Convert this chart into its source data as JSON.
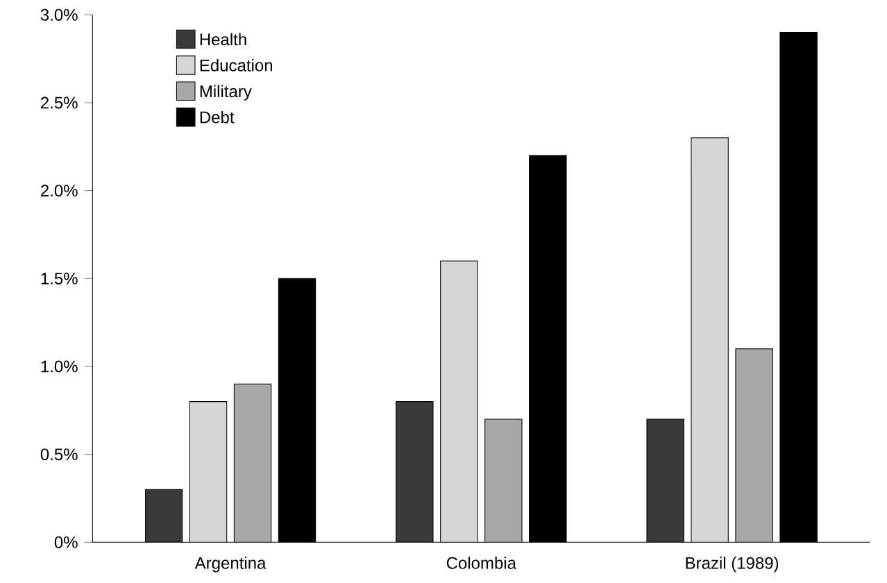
{
  "chart_data": {
    "type": "bar",
    "categories": [
      "Argentina",
      "Colombia",
      "Brazil (1989)"
    ],
    "series": [
      {
        "name": "Health",
        "color": "#3a3a3a",
        "values": [
          0.3,
          0.8,
          0.7
        ]
      },
      {
        "name": "Education",
        "color": "#d6d6d6",
        "values": [
          0.8,
          1.6,
          2.3
        ]
      },
      {
        "name": "Military",
        "color": "#a8a8a8",
        "values": [
          0.9,
          0.7,
          1.1
        ]
      },
      {
        "name": "Debt",
        "color": "#000000",
        "values": [
          1.5,
          2.2,
          2.9
        ]
      }
    ],
    "ylim": [
      0,
      3
    ],
    "yticks": [
      {
        "value": 0,
        "label": "0%"
      },
      {
        "value": 0.5,
        "label": "0.5%"
      },
      {
        "value": 1,
        "label": "1.0%"
      },
      {
        "value": 1.5,
        "label": "1.5%"
      },
      {
        "value": 2,
        "label": "2.0%"
      },
      {
        "value": 2.5,
        "label": "2.5%"
      },
      {
        "value": 3,
        "label": "3.0%"
      }
    ],
    "legend": "top left",
    "grid": false
  }
}
